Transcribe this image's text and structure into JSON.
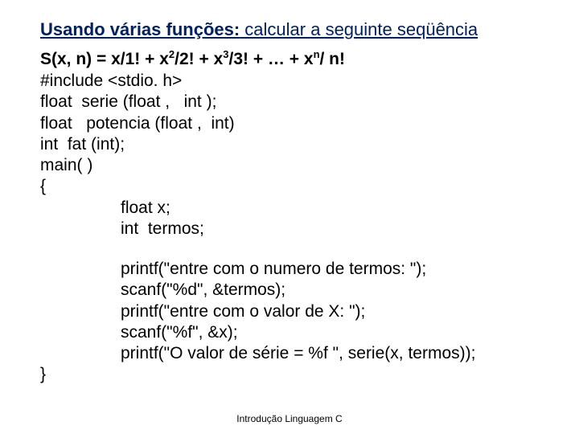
{
  "title_bold": "Usando várias funções:",
  "title_rest": " calcular a seguinte seqüência",
  "formula_parts": {
    "p1": "S(x, n) = x/1!  +  x",
    "sup1": "2",
    "p2": "/2!  +  x",
    "sup2": "3",
    "p3": "/3!  +  … +  x",
    "sup3": "n",
    "p4": "/ n!"
  },
  "lines": {
    "l1": "#include <stdio. h>",
    "l2": "float  serie (float ,   int );",
    "l3": "float   potencia (float ,  int)",
    "l4": "int  fat (int);",
    "l5": "main( )",
    "l6": "{",
    "l7": "float x;",
    "l8": "int  termos;",
    "l9": "printf(\"entre com o numero de termos: \");",
    "l10": "scanf(\"%d\", &termos);",
    "l11": "printf(\"entre com o valor de X: \");",
    "l12": "scanf(\"%f\", &x);",
    "l13": "printf(\"O valor de série = %f \", serie(x, termos));",
    "l14": "}"
  },
  "footer": "Introdução Linguagem C"
}
